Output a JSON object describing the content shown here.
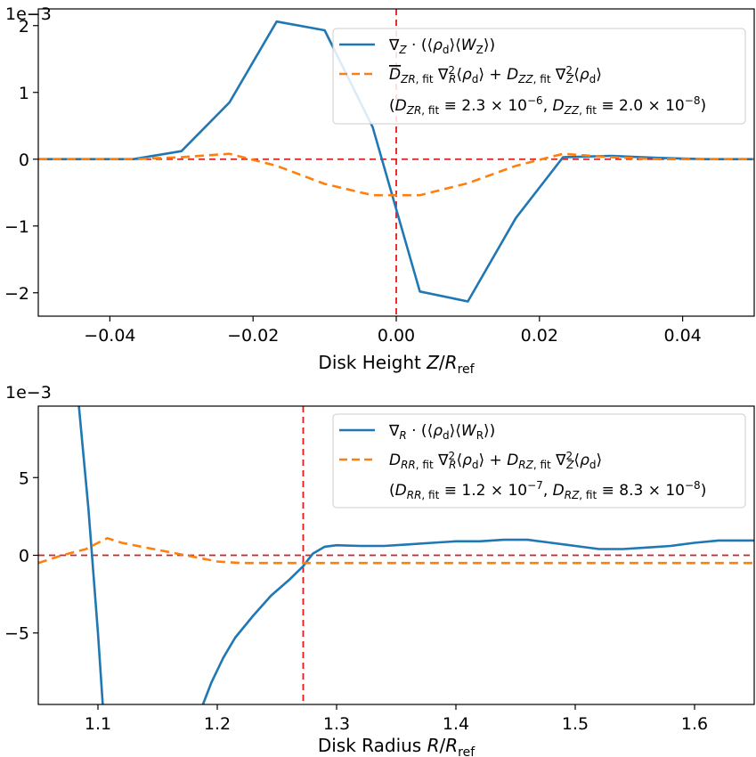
{
  "chart_data": [
    {
      "type": "line",
      "title": "",
      "xlabel": "Disk Height Z/R_ref",
      "xlabel_parts": {
        "pre": "Disk Height ",
        "var": "Z",
        "slash": "/",
        "var2": "R",
        "sub": "ref"
      },
      "ylabel": "",
      "scale_label": "1e−3",
      "xlim": [
        -0.05,
        0.05
      ],
      "ylim": [
        -2.35,
        2.25
      ],
      "xticks": [
        -0.04,
        -0.02,
        0.0,
        0.02,
        0.04
      ],
      "xtick_labels": [
        "−0.04",
        "−0.02",
        "0.00",
        "0.02",
        "0.04"
      ],
      "yticks": [
        -2,
        -1,
        0,
        1,
        2
      ],
      "ytick_labels": [
        "−2",
        "−1",
        "0",
        "1",
        "2"
      ],
      "grid": false,
      "legend_position": "top-right",
      "reference_lines": {
        "y": 0,
        "x": 0.0,
        "color": "#e41a1c"
      },
      "series": [
        {
          "name": "∇_Z · (⟨ρ_d⟩⟨W_Z⟩)",
          "color": "#1f77b4",
          "style": "solid",
          "x": [
            -0.05,
            -0.0433,
            -0.0367,
            -0.03,
            -0.0233,
            -0.0167,
            -0.01,
            -0.0033,
            0.0033,
            0.01,
            0.0167,
            0.0233,
            0.03,
            0.0367,
            0.0433,
            0.05
          ],
          "y": [
            0.0,
            0.0,
            0.0,
            0.12,
            0.85,
            2.06,
            1.93,
            0.48,
            -1.98,
            -2.13,
            -0.88,
            0.03,
            0.05,
            0.02,
            0.0,
            0.0
          ]
        },
        {
          "name": "D̄_ZR,fit ∇²_R⟨ρ_d⟩ + D̄_ZZ,fit ∇²_Z⟨ρ_d⟩",
          "color": "#ff7f0e",
          "style": "dashed",
          "x": [
            -0.05,
            -0.0433,
            -0.0367,
            -0.03,
            -0.0233,
            -0.0167,
            -0.01,
            -0.0033,
            0.0033,
            0.01,
            0.0167,
            0.0233,
            0.03,
            0.0367,
            0.0433,
            0.05
          ],
          "y": [
            0.0,
            0.0,
            0.0,
            0.03,
            0.08,
            -0.1,
            -0.37,
            -0.54,
            -0.54,
            -0.36,
            -0.1,
            0.08,
            0.03,
            0.0,
            0.0,
            0.0
          ]
        }
      ],
      "legend": [
        {
          "line": "∇Z · (⟨ρd⟩⟨WZ⟩)"
        },
        {
          "line": "D̄ZR, fit ∇²R⟨ρd⟩ + D̄ZZ, fit ∇²Z⟨ρd⟩"
        },
        {
          "line": "(D̄ZR, fit ≡ 2.3 × 10⁻⁶, D̄ZZ, fit ≡ 2.0 × 10⁻⁸)"
        }
      ],
      "fit_values": {
        "D_ZR": "2.3 × 10",
        "D_ZR_exp": "−6",
        "D_ZZ": "2.0 × 10",
        "D_ZZ_exp": "−8"
      }
    },
    {
      "type": "line",
      "title": "",
      "xlabel": "Disk Radius R/R_ref",
      "xlabel_parts": {
        "pre": "Disk Radius ",
        "var": "R",
        "slash": "/",
        "var2": "R",
        "sub": "ref"
      },
      "ylabel": "",
      "scale_label": "1e−3",
      "xlim": [
        1.05,
        1.65
      ],
      "ylim": [
        -9.6,
        9.6
      ],
      "xticks": [
        1.1,
        1.2,
        1.3,
        1.4,
        1.5,
        1.6
      ],
      "xtick_labels": [
        "1.1",
        "1.2",
        "1.3",
        "1.4",
        "1.5",
        "1.6"
      ],
      "yticks": [
        -5,
        0,
        5
      ],
      "ytick_labels": [
        "−5",
        "0",
        "5"
      ],
      "grid": false,
      "legend_position": "top-right",
      "reference_lines": {
        "y": 0,
        "x": 1.272,
        "color": "#e41a1c"
      },
      "series": [
        {
          "name": "∇_R · (⟨ρ_d⟩⟨W_R⟩)",
          "color": "#1f77b4",
          "style": "solid",
          "segments": [
            {
              "x": [
                1.084,
                1.092,
                1.1,
                1.104
              ],
              "y": [
                9.6,
                3.0,
                -5.0,
                -9.6
              ]
            },
            {
              "x": [
                1.188,
                1.195,
                1.205,
                1.215,
                1.23,
                1.245,
                1.26,
                1.272,
                1.28,
                1.29,
                1.3,
                1.32,
                1.34,
                1.36,
                1.38,
                1.4,
                1.42,
                1.44,
                1.46,
                1.48,
                1.5,
                1.52,
                1.54,
                1.56,
                1.58,
                1.6,
                1.62,
                1.65
              ],
              "y": [
                -9.6,
                -8.2,
                -6.6,
                -5.3,
                -3.9,
                -2.6,
                -1.6,
                -0.7,
                0.1,
                0.55,
                0.65,
                0.6,
                0.6,
                0.7,
                0.8,
                0.9,
                0.9,
                1.0,
                1.0,
                0.8,
                0.6,
                0.4,
                0.4,
                0.5,
                0.6,
                0.8,
                0.95,
                0.95
              ]
            }
          ]
        },
        {
          "name": "D̄_RR,fit ∇²_R⟨ρ_d⟩ + D̄_RZ,fit ∇²_Z⟨ρ_d⟩",
          "color": "#ff7f0e",
          "style": "dashed",
          "x": [
            1.05,
            1.07,
            1.09,
            1.1,
            1.108,
            1.12,
            1.14,
            1.16,
            1.18,
            1.2,
            1.22,
            1.25,
            1.3,
            1.4,
            1.5,
            1.6,
            1.65
          ],
          "y": [
            -0.5,
            0.0,
            0.4,
            0.8,
            1.1,
            0.8,
            0.5,
            0.2,
            -0.1,
            -0.4,
            -0.5,
            -0.5,
            -0.5,
            -0.5,
            -0.5,
            -0.5,
            -0.5
          ]
        }
      ],
      "legend": [
        {
          "line": "∇R · (⟨ρd⟩⟨WR⟩)"
        },
        {
          "line": "D̄RR, fit ∇²R⟨ρd⟩ + D̄RZ, fit ∇²Z⟨ρd⟩"
        },
        {
          "line": "(D̄RR, fit ≡ 1.2 × 10⁻⁷, D̄RZ, fit ≡ 8.3 × 10⁻⁸)"
        }
      ],
      "fit_values": {
        "D_ZR": "1.2 × 10",
        "D_ZR_exp": "−7",
        "D_ZZ": "8.3 × 10",
        "D_ZZ_exp": "−8"
      }
    }
  ]
}
